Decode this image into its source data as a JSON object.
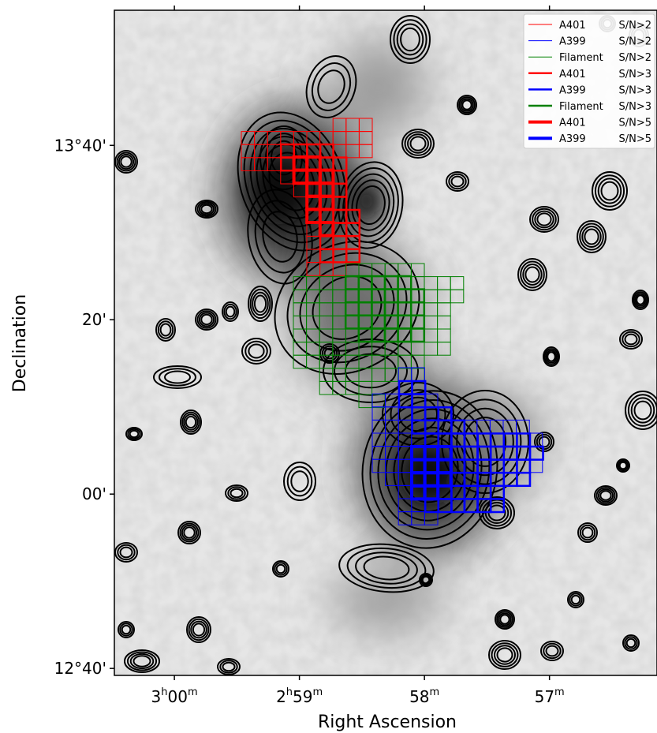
{
  "chart_data": {
    "type": "scatter",
    "xlabel": "Right Ascension",
    "ylabel": "Declination",
    "x_ticks": [
      {
        "h": "3",
        "m": "00",
        "ra_min": 180
      },
      {
        "h": "2",
        "m": "59",
        "ra_min": 179
      },
      {
        "h": "",
        "m": "58",
        "ra_min": 178
      },
      {
        "h": "",
        "m": "57",
        "ra_min": 177
      }
    ],
    "y_ticks": [
      {
        "label": "13°40'",
        "dec_arcmin": 40
      },
      {
        "label": "20'",
        "dec_arcmin": 20
      },
      {
        "label": "00'",
        "dec_arcmin": 0
      },
      {
        "label": "12°40'",
        "dec_arcmin": -20
      }
    ],
    "xlim_ra_min": [
      180.48,
      176.14
    ],
    "ylim_dec_arcmin": [
      -20.8,
      55.5
    ],
    "grid": false,
    "legend_position": "top-right",
    "series": [
      {
        "name": "A401",
        "snr": "S/N>2",
        "color": "#ff0000",
        "width": 1
      },
      {
        "name": "A399",
        "snr": "S/N>2",
        "color": "#0000ff",
        "width": 1
      },
      {
        "name": "Filament",
        "snr": "S/N>2",
        "color": "#008000",
        "width": 1
      },
      {
        "name": "A401",
        "snr": "S/N>3",
        "color": "#ff0000",
        "width": 2.5
      },
      {
        "name": "A399",
        "snr": "S/N>3",
        "color": "#0000ff",
        "width": 2.5
      },
      {
        "name": "Filament",
        "snr": "S/N>3",
        "color": "#008000",
        "width": 2.5
      },
      {
        "name": "A401",
        "snr": "S/N>5",
        "color": "#ff0000",
        "width": 4
      },
      {
        "name": "A399",
        "snr": "S/N>5",
        "color": "#0000ff",
        "width": 4
      }
    ]
  }
}
